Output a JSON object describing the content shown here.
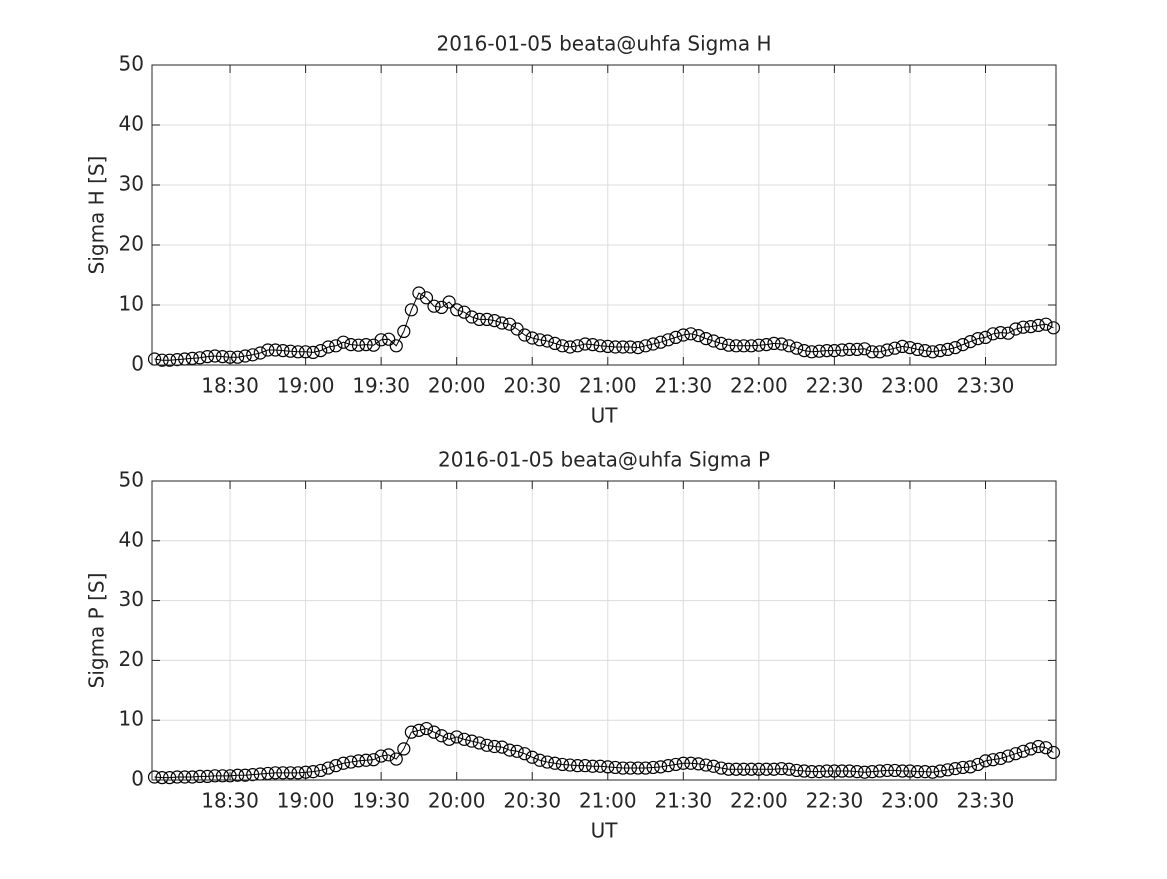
{
  "chart_data": [
    {
      "type": "line",
      "title": "2016-01-05  beata@uhfa Sigma H",
      "x_label": "UT",
      "y_label": "Sigma H [S]",
      "x": [
        "18:00",
        "18:03",
        "18:06",
        "18:09",
        "18:12",
        "18:15",
        "18:18",
        "18:21",
        "18:24",
        "18:27",
        "18:30",
        "18:33",
        "18:36",
        "18:39",
        "18:42",
        "18:45",
        "18:48",
        "18:51",
        "18:54",
        "18:57",
        "19:00",
        "19:03",
        "19:06",
        "19:09",
        "19:12",
        "19:15",
        "19:18",
        "19:21",
        "19:24",
        "19:27",
        "19:30",
        "19:33",
        "19:36",
        "19:39",
        "19:42",
        "19:45",
        "19:48",
        "19:51",
        "19:54",
        "19:57",
        "20:00",
        "20:03",
        "20:06",
        "20:09",
        "20:12",
        "20:15",
        "20:18",
        "20:21",
        "20:24",
        "20:27",
        "20:30",
        "20:33",
        "20:36",
        "20:39",
        "20:42",
        "20:45",
        "20:48",
        "20:51",
        "20:54",
        "20:57",
        "21:00",
        "21:03",
        "21:06",
        "21:09",
        "21:12",
        "21:15",
        "21:18",
        "21:21",
        "21:24",
        "21:27",
        "21:30",
        "21:33",
        "21:36",
        "21:39",
        "21:42",
        "21:45",
        "21:48",
        "21:51",
        "21:54",
        "21:57",
        "22:00",
        "22:03",
        "22:06",
        "22:09",
        "22:12",
        "22:15",
        "22:18",
        "22:21",
        "22:24",
        "22:27",
        "22:30",
        "22:33",
        "22:36",
        "22:39",
        "22:42",
        "22:45",
        "22:48",
        "22:51",
        "22:54",
        "22:57",
        "23:00",
        "23:03",
        "23:06",
        "23:09",
        "23:12",
        "23:15",
        "23:18",
        "23:21",
        "23:24",
        "23:27",
        "23:30",
        "23:33",
        "23:36",
        "23:39",
        "23:42",
        "23:45",
        "23:48",
        "23:51",
        "23:54",
        "23:57"
      ],
      "series": [
        {
          "color": "#000000",
          "marker": "o",
          "values": [
            1.0,
            0.8,
            0.8,
            0.9,
            1.0,
            1.1,
            1.2,
            1.4,
            1.5,
            1.4,
            1.3,
            1.3,
            1.5,
            1.7,
            2.0,
            2.5,
            2.5,
            2.4,
            2.3,
            2.2,
            2.2,
            2.1,
            2.4,
            3.0,
            3.2,
            3.8,
            3.4,
            3.3,
            3.4,
            3.3,
            4.2,
            4.3,
            3.2,
            5.6,
            9.2,
            12.0,
            11.2,
            9.8,
            9.6,
            10.5,
            9.2,
            8.8,
            8.0,
            7.6,
            7.6,
            7.4,
            7.0,
            6.8,
            6.0,
            5.0,
            4.5,
            4.2,
            4.0,
            3.6,
            3.2,
            3.0,
            3.2,
            3.5,
            3.4,
            3.2,
            3.1,
            3.0,
            3.0,
            3.0,
            2.9,
            3.2,
            3.5,
            3.8,
            4.2,
            4.6,
            5.0,
            5.2,
            4.9,
            4.4,
            4.0,
            3.6,
            3.3,
            3.2,
            3.2,
            3.2,
            3.3,
            3.4,
            3.6,
            3.5,
            3.2,
            2.8,
            2.4,
            2.2,
            2.3,
            2.4,
            2.4,
            2.5,
            2.6,
            2.6,
            2.7,
            2.2,
            2.2,
            2.5,
            2.8,
            3.1,
            2.9,
            2.6,
            2.4,
            2.2,
            2.4,
            2.6,
            2.9,
            3.4,
            3.9,
            4.4,
            4.6,
            5.2,
            5.4,
            5.3,
            6.0,
            6.3,
            6.4,
            6.6,
            6.8,
            6.2
          ]
        }
      ],
      "xlim": [
        "17:59",
        "23:58"
      ],
      "xticks": [
        "18:30",
        "19:00",
        "19:30",
        "20:00",
        "20:30",
        "21:00",
        "21:30",
        "22:00",
        "22:30",
        "23:00",
        "23:30"
      ],
      "ylim": [
        0,
        50
      ],
      "yticks": [
        0,
        10,
        20,
        30,
        40,
        50
      ],
      "grid": true
    },
    {
      "type": "line",
      "title": "2016-01-05  beata@uhfa Sigma P",
      "x_label": "UT",
      "y_label": "Sigma P [S]",
      "x": [
        "18:00",
        "18:03",
        "18:06",
        "18:09",
        "18:12",
        "18:15",
        "18:18",
        "18:21",
        "18:24",
        "18:27",
        "18:30",
        "18:33",
        "18:36",
        "18:39",
        "18:42",
        "18:45",
        "18:48",
        "18:51",
        "18:54",
        "18:57",
        "19:00",
        "19:03",
        "19:06",
        "19:09",
        "19:12",
        "19:15",
        "19:18",
        "19:21",
        "19:24",
        "19:27",
        "19:30",
        "19:33",
        "19:36",
        "19:39",
        "19:42",
        "19:45",
        "19:48",
        "19:51",
        "19:54",
        "19:57",
        "20:00",
        "20:03",
        "20:06",
        "20:09",
        "20:12",
        "20:15",
        "20:18",
        "20:21",
        "20:24",
        "20:27",
        "20:30",
        "20:33",
        "20:36",
        "20:39",
        "20:42",
        "20:45",
        "20:48",
        "20:51",
        "20:54",
        "20:57",
        "21:00",
        "21:03",
        "21:06",
        "21:09",
        "21:12",
        "21:15",
        "21:18",
        "21:21",
        "21:24",
        "21:27",
        "21:30",
        "21:33",
        "21:36",
        "21:39",
        "21:42",
        "21:45",
        "21:48",
        "21:51",
        "21:54",
        "21:57",
        "22:00",
        "22:03",
        "22:06",
        "22:09",
        "22:12",
        "22:15",
        "22:18",
        "22:21",
        "22:24",
        "22:27",
        "22:30",
        "22:33",
        "22:36",
        "22:39",
        "22:42",
        "22:45",
        "22:48",
        "22:51",
        "22:54",
        "22:57",
        "23:00",
        "23:03",
        "23:06",
        "23:09",
        "23:12",
        "23:15",
        "23:18",
        "23:21",
        "23:24",
        "23:27",
        "23:30",
        "23:33",
        "23:36",
        "23:39",
        "23:42",
        "23:45",
        "23:48",
        "23:51",
        "23:54",
        "23:57"
      ],
      "series": [
        {
          "color": "#000000",
          "marker": "o",
          "values": [
            0.5,
            0.4,
            0.4,
            0.5,
            0.5,
            0.5,
            0.6,
            0.6,
            0.7,
            0.7,
            0.7,
            0.8,
            0.8,
            0.9,
            1.0,
            1.1,
            1.2,
            1.2,
            1.2,
            1.2,
            1.3,
            1.4,
            1.6,
            2.0,
            2.4,
            2.8,
            3.0,
            3.2,
            3.3,
            3.4,
            4.0,
            4.2,
            3.5,
            5.2,
            8.0,
            8.3,
            8.6,
            8.0,
            7.4,
            6.8,
            7.2,
            6.8,
            6.5,
            6.2,
            5.8,
            5.6,
            5.5,
            5.0,
            4.8,
            4.4,
            3.8,
            3.3,
            3.0,
            2.8,
            2.6,
            2.5,
            2.4,
            2.4,
            2.3,
            2.3,
            2.2,
            2.1,
            2.0,
            2.0,
            2.0,
            2.0,
            2.1,
            2.2,
            2.4,
            2.6,
            2.8,
            2.8,
            2.7,
            2.5,
            2.3,
            2.0,
            1.8,
            1.8,
            1.8,
            1.8,
            1.8,
            1.8,
            1.8,
            1.9,
            1.8,
            1.6,
            1.5,
            1.4,
            1.4,
            1.5,
            1.5,
            1.5,
            1.5,
            1.4,
            1.3,
            1.4,
            1.5,
            1.6,
            1.6,
            1.5,
            1.5,
            1.4,
            1.4,
            1.3,
            1.5,
            1.7,
            1.9,
            2.1,
            2.2,
            2.6,
            3.2,
            3.4,
            3.6,
            4.0,
            4.4,
            4.8,
            5.2,
            5.6,
            5.4,
            4.6
          ]
        }
      ],
      "xlim": [
        "17:59",
        "23:58"
      ],
      "xticks": [
        "18:30",
        "19:00",
        "19:30",
        "20:00",
        "20:30",
        "21:00",
        "21:30",
        "22:00",
        "22:30",
        "23:00",
        "23:30"
      ],
      "ylim": [
        0,
        50
      ],
      "yticks": [
        0,
        10,
        20,
        30,
        40,
        50
      ],
      "grid": true
    }
  ]
}
